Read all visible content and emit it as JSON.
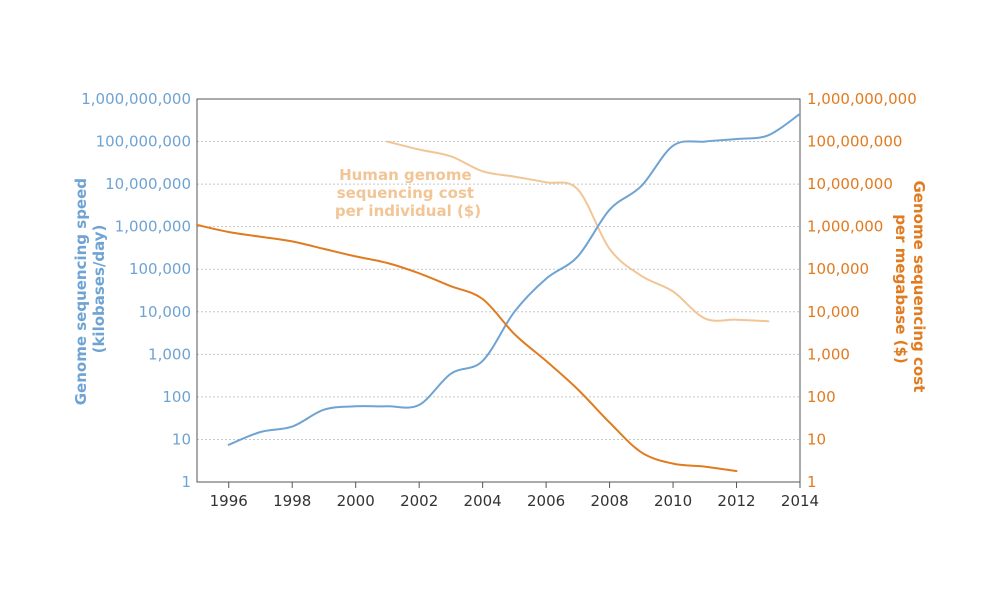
{
  "chart_data": {
    "type": "line",
    "x_ticks": [
      "1996",
      "1998",
      "2000",
      "2002",
      "2004",
      "2006",
      "2008",
      "2010",
      "2012",
      "2014"
    ],
    "left_axis": {
      "label_lines": [
        "Genome sequencing speed",
        "(kilobases/day)"
      ],
      "scale": "log",
      "ylim": [
        1,
        1000000000
      ],
      "tick_labels": [
        "1",
        "10",
        "100",
        "1,000",
        "10,000",
        "100,000",
        "1,000,000",
        "10,000,000",
        "100,000,000",
        "1,000,000,000"
      ],
      "color": "#6fa3d3"
    },
    "right_axis": {
      "label_lines": [
        "Genome sequencing cost",
        "per megabase ($)"
      ],
      "scale": "log",
      "ylim": [
        1,
        1000000000
      ],
      "tick_labels": [
        "1",
        "10",
        "100",
        "1,000",
        "10,000",
        "100,000",
        "1,000,000",
        "10,000,000",
        "100,000,000",
        "1,000,000,000"
      ],
      "color": "#e07b20"
    },
    "xlim": [
      1995,
      2014
    ],
    "grid": true,
    "annotation_lines": [
      "Human genome",
      "sequencing cost",
      "per individual ($)"
    ],
    "series": [
      {
        "axis": "left",
        "color": "#6fa3d3",
        "x": [
          1996,
          1997,
          1998,
          1999,
          2000,
          2001,
          2002,
          2003,
          2004,
          2005,
          2006,
          2007,
          2008,
          2009,
          2010,
          2011,
          2012,
          2013,
          2014
        ],
        "y": [
          7.5,
          15,
          20,
          50,
          60,
          60,
          65,
          350,
          700,
          10000,
          60000,
          200000,
          2500000,
          9000000,
          80000000,
          100000000,
          115000000,
          140000000,
          450000000
        ]
      },
      {
        "axis": "right",
        "color": "#e07b20",
        "x": [
          1995,
          1996,
          1997,
          1998,
          1999,
          2000,
          2001,
          2002,
          2003,
          2004,
          2005,
          2006,
          2007,
          2008,
          2009,
          2010,
          2011,
          2012
        ],
        "y": [
          1100000,
          750000,
          580000,
          450000,
          300000,
          200000,
          140000,
          80000,
          40000,
          20000,
          3000,
          700,
          150,
          25,
          5,
          2.7,
          2.3,
          1.8
        ]
      },
      {
        "axis": "right",
        "name": "Human genome sequencing cost per individual ($)",
        "color": "#f2c596",
        "x": [
          2001,
          2002,
          2003,
          2004,
          2005,
          2006,
          2007,
          2008,
          2009,
          2010,
          2011,
          2012,
          2013
        ],
        "y": [
          100000000,
          65000000,
          45000000,
          20000000,
          15000000,
          11000000,
          7500000,
          300000,
          70000,
          30000,
          7000,
          6500,
          6000
        ]
      }
    ]
  }
}
